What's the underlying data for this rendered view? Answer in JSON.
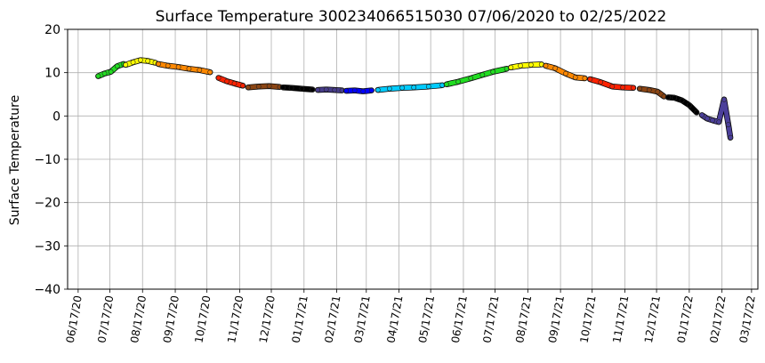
{
  "chart_data": {
    "type": "scatter",
    "title": "Surface Temperature 300234066515030  07/06/2020 to 02/25/2022",
    "xlabel": "",
    "ylabel": "Surface Temperature",
    "ylim": [
      -40,
      20
    ],
    "xlim": [
      "2020-06-07",
      "2022-03-23"
    ],
    "yticks": [
      -40,
      -30,
      -20,
      -10,
      0,
      10,
      20
    ],
    "xticks": [
      "2020-06-17",
      "2020-07-17",
      "2020-08-17",
      "2020-09-17",
      "2020-10-17",
      "2020-11-17",
      "2020-12-17",
      "2021-01-17",
      "2021-02-17",
      "2021-03-17",
      "2021-04-17",
      "2021-05-17",
      "2021-06-17",
      "2021-07-17",
      "2021-08-17",
      "2021-09-17",
      "2021-10-17",
      "2021-11-17",
      "2021-12-17",
      "2022-01-17",
      "2022-02-17",
      "2022-03-17"
    ],
    "xtick_labels": [
      "06/17/20",
      "07/17/20",
      "08/17/20",
      "09/17/20",
      "10/17/20",
      "11/17/20",
      "12/17/20",
      "01/17/21",
      "02/17/21",
      "03/17/21",
      "04/17/21",
      "05/17/21",
      "06/17/21",
      "07/17/21",
      "08/17/21",
      "09/17/21",
      "10/17/21",
      "11/17/21",
      "12/17/21",
      "01/17/22",
      "02/17/22",
      "03/17/22"
    ],
    "grid": true,
    "series": [
      {
        "color": "#22dd22",
        "x": [
          "2020-07-06",
          "2020-07-12",
          "2020-07-18",
          "2020-07-24",
          "2020-07-30"
        ],
        "y": [
          9.2,
          9.8,
          10.2,
          11.5,
          12.0
        ]
      },
      {
        "color": "#ffff00",
        "x": [
          "2020-08-01",
          "2020-08-08",
          "2020-08-15",
          "2020-08-22",
          "2020-08-29"
        ],
        "y": [
          11.8,
          12.4,
          12.9,
          12.7,
          12.3
        ]
      },
      {
        "color": "#ff8800",
        "x": [
          "2020-09-01",
          "2020-09-10",
          "2020-09-20",
          "2020-09-30",
          "2020-10-10",
          "2020-10-20"
        ],
        "y": [
          12.0,
          11.6,
          11.3,
          10.9,
          10.6,
          10.1
        ]
      },
      {
        "color": "#ff2200",
        "x": [
          "2020-10-28",
          "2020-11-05",
          "2020-11-12",
          "2020-11-20"
        ],
        "y": [
          8.8,
          8.0,
          7.5,
          7.0
        ]
      },
      {
        "color": "#8b4513",
        "x": [
          "2020-11-25",
          "2020-12-05",
          "2020-12-15",
          "2020-12-25"
        ],
        "y": [
          6.6,
          6.8,
          6.9,
          6.7
        ]
      },
      {
        "color": "#000000",
        "x": [
          "2020-12-28",
          "2021-01-05",
          "2021-01-15",
          "2021-01-25"
        ],
        "y": [
          6.6,
          6.5,
          6.3,
          6.1
        ]
      },
      {
        "color": "#483d8b",
        "x": [
          "2021-01-30",
          "2021-02-07",
          "2021-02-15",
          "2021-02-22"
        ],
        "y": [
          6.0,
          6.1,
          6.0,
          5.9
        ]
      },
      {
        "color": "#0000ff",
        "x": [
          "2021-02-26",
          "2021-03-06",
          "2021-03-14",
          "2021-03-22"
        ],
        "y": [
          5.8,
          5.9,
          5.7,
          5.9
        ]
      },
      {
        "color": "#00ccff",
        "x": [
          "2021-03-28",
          "2021-04-08",
          "2021-04-20",
          "2021-05-01",
          "2021-05-15",
          "2021-05-28"
        ],
        "y": [
          6.0,
          6.3,
          6.5,
          6.6,
          6.8,
          7.1
        ]
      },
      {
        "color": "#22dd22",
        "x": [
          "2021-06-01",
          "2021-06-12",
          "2021-06-24",
          "2021-07-05",
          "2021-07-15",
          "2021-07-28"
        ],
        "y": [
          7.3,
          7.9,
          8.7,
          9.5,
          10.2,
          10.9
        ]
      },
      {
        "color": "#ffff00",
        "x": [
          "2021-08-01",
          "2021-08-10",
          "2021-08-20",
          "2021-08-30"
        ],
        "y": [
          11.2,
          11.6,
          11.8,
          11.9
        ]
      },
      {
        "color": "#ff8800",
        "x": [
          "2021-09-03",
          "2021-09-12",
          "2021-09-22",
          "2021-10-01",
          "2021-10-10"
        ],
        "y": [
          11.6,
          11.0,
          9.8,
          8.9,
          8.7
        ]
      },
      {
        "color": "#ff2200",
        "x": [
          "2021-10-15",
          "2021-10-25",
          "2021-11-05",
          "2021-11-15",
          "2021-11-25"
        ],
        "y": [
          8.5,
          7.8,
          6.8,
          6.6,
          6.5
        ]
      },
      {
        "color": "#8b4513",
        "x": [
          "2021-12-01",
          "2021-12-10",
          "2021-12-18",
          "2021-12-24"
        ],
        "y": [
          6.3,
          6.0,
          5.6,
          4.5
        ]
      },
      {
        "color": "#000000",
        "x": [
          "2021-12-28",
          "2022-01-03",
          "2022-01-10",
          "2022-01-17",
          "2022-01-24"
        ],
        "y": [
          4.3,
          4.2,
          3.6,
          2.5,
          0.8
        ]
      },
      {
        "color": "#4b3f9a",
        "x": [
          "2022-01-29",
          "2022-02-03",
          "2022-02-08",
          "2022-02-14",
          "2022-02-19",
          "2022-02-23",
          "2022-02-25"
        ],
        "y": [
          0.2,
          -0.6,
          -1.0,
          -1.4,
          3.8,
          -2.0,
          -5.0
        ]
      }
    ]
  }
}
